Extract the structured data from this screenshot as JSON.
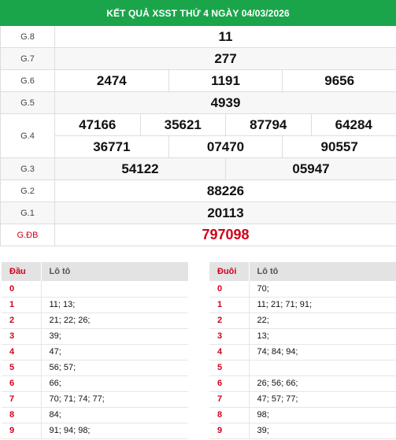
{
  "title": "KẾT QUẢ XSST THỨ 4 NGÀY 04/03/2026",
  "prizes": [
    {
      "label": "G.8",
      "numbers": [
        "11"
      ]
    },
    {
      "label": "G.7",
      "numbers": [
        "277"
      ]
    },
    {
      "label": "G.6",
      "numbers": [
        "2474",
        "1191",
        "9656"
      ]
    },
    {
      "label": "G.5",
      "numbers": [
        "4939"
      ]
    },
    {
      "label": "G.4",
      "numbers": [
        "47166",
        "35621",
        "87794",
        "64284",
        "36771",
        "07470",
        "90557"
      ]
    },
    {
      "label": "G.3",
      "numbers": [
        "54122",
        "05947"
      ]
    },
    {
      "label": "G.2",
      "numbers": [
        "88226"
      ]
    },
    {
      "label": "G.1",
      "numbers": [
        "20113"
      ]
    },
    {
      "label": "G.ĐB",
      "numbers": [
        "797098"
      ]
    }
  ],
  "head_table": {
    "col1": "Đầu",
    "col2": "Lô tô",
    "rows": [
      {
        "digit": "0",
        "values": ""
      },
      {
        "digit": "1",
        "values": "11; 13;"
      },
      {
        "digit": "2",
        "values": "21; 22; 26;"
      },
      {
        "digit": "3",
        "values": "39;"
      },
      {
        "digit": "4",
        "values": "47;"
      },
      {
        "digit": "5",
        "values": "56; 57;"
      },
      {
        "digit": "6",
        "values": "66;"
      },
      {
        "digit": "7",
        "values": "70; 71; 74; 77;"
      },
      {
        "digit": "8",
        "values": "84;"
      },
      {
        "digit": "9",
        "values": "91; 94; 98;"
      }
    ]
  },
  "tail_table": {
    "col1": "Đuôi",
    "col2": "Lô tô",
    "rows": [
      {
        "digit": "0",
        "values": "70;"
      },
      {
        "digit": "1",
        "values": "11; 21; 71; 91;"
      },
      {
        "digit": "2",
        "values": "22;"
      },
      {
        "digit": "3",
        "values": "13;"
      },
      {
        "digit": "4",
        "values": "74; 84; 94;"
      },
      {
        "digit": "5",
        "values": ""
      },
      {
        "digit": "6",
        "values": "26; 56; 66;"
      },
      {
        "digit": "7",
        "values": "47; 57; 77;"
      },
      {
        "digit": "8",
        "values": "98;"
      },
      {
        "digit": "9",
        "values": "39;"
      }
    ]
  }
}
